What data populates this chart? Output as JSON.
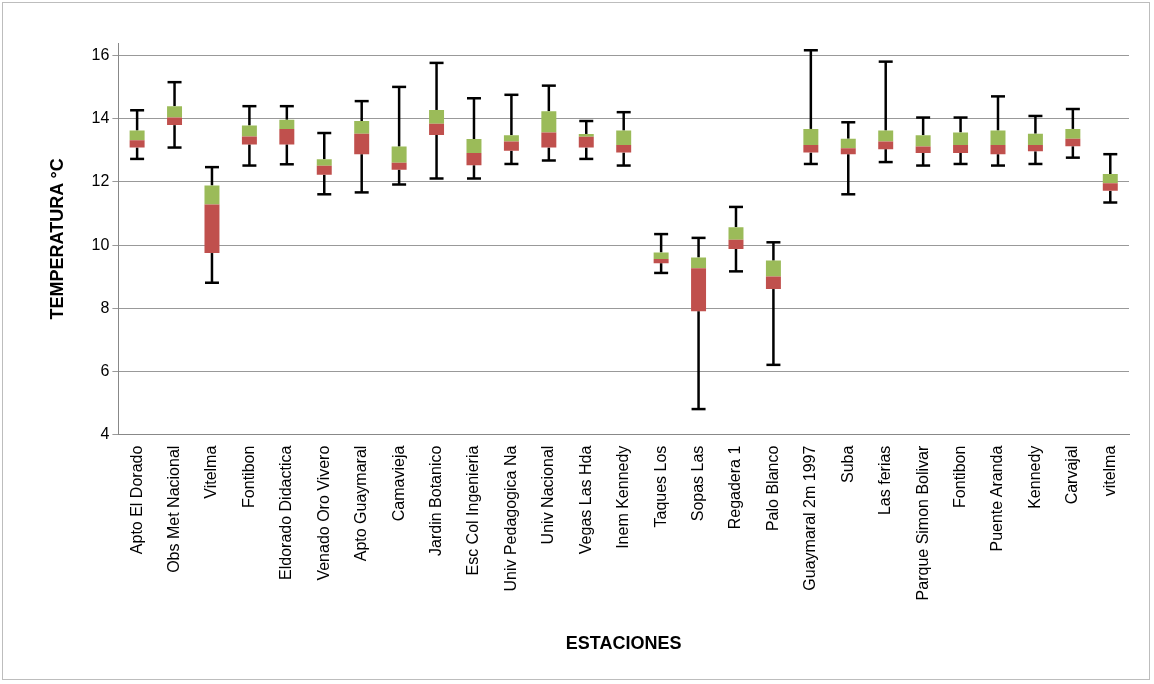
{
  "chart_data": {
    "type": "box",
    "xlabel": "ESTACIONES",
    "ylabel": "TEMPERATURA °C",
    "categories": [
      "Apto El Dorado",
      "Obs Met Nacional",
      "Vitelma",
      "Fontibon",
      "Eldorado Didactica",
      "Venado Oro Vivero",
      "Apto Guaymaral",
      "Camavieja",
      "Jardin Botanico",
      "Esc Col Ingenieria",
      "Univ Pedagogica Na",
      "Univ Nacional",
      "Vegas Las Hda",
      "Inem Kennedy",
      "Taques Los",
      "Sopas Las",
      "Regadera 1",
      "Palo Blanco",
      "Guaymaral 2m 1997",
      "Suba",
      "Las ferias",
      "Parque Simon Bolivar",
      "Fontibon",
      "Puente Aranda",
      "Kennedy",
      "Carvajal",
      "vitelma"
    ],
    "boxes": [
      {
        "low": 12.73,
        "q1": 13.09,
        "median": 13.32,
        "q3": 13.63,
        "high": 14.27
      },
      {
        "low": 13.09,
        "q1": 13.8,
        "median": 14.04,
        "q3": 14.4,
        "high": 15.16
      },
      {
        "low": 8.81,
        "q1": 9.75,
        "median": 11.29,
        "q3": 11.89,
        "high": 12.47
      },
      {
        "low": 12.52,
        "q1": 13.19,
        "median": 13.44,
        "q3": 13.79,
        "high": 14.4
      },
      {
        "low": 12.56,
        "q1": 13.19,
        "median": 13.68,
        "q3": 13.97,
        "high": 14.4
      },
      {
        "low": 11.61,
        "q1": 12.23,
        "median": 12.51,
        "q3": 12.72,
        "high": 13.55
      },
      {
        "low": 11.67,
        "q1": 12.88,
        "median": 13.53,
        "q3": 13.93,
        "high": 14.56
      },
      {
        "low": 11.92,
        "q1": 12.39,
        "median": 12.61,
        "q3": 13.12,
        "high": 15.01
      },
      {
        "low": 12.11,
        "q1": 13.49,
        "median": 13.84,
        "q3": 14.28,
        "high": 15.77
      },
      {
        "low": 12.11,
        "q1": 12.53,
        "median": 12.92,
        "q3": 13.36,
        "high": 14.65
      },
      {
        "low": 12.57,
        "q1": 12.99,
        "median": 13.28,
        "q3": 13.48,
        "high": 14.76
      },
      {
        "low": 12.68,
        "q1": 13.09,
        "median": 13.57,
        "q3": 14.24,
        "high": 15.05
      },
      {
        "low": 12.73,
        "q1": 13.09,
        "median": 13.43,
        "q3": 13.52,
        "high": 13.93
      },
      {
        "low": 12.52,
        "q1": 12.93,
        "median": 13.17,
        "q3": 13.63,
        "high": 14.21
      },
      {
        "low": 9.12,
        "q1": 9.43,
        "median": 9.56,
        "q3": 9.77,
        "high": 10.35
      },
      {
        "low": 4.81,
        "q1": 7.91,
        "median": 9.27,
        "q3": 9.61,
        "high": 10.23
      },
      {
        "low": 9.17,
        "q1": 9.88,
        "median": 10.17,
        "q3": 10.57,
        "high": 11.21
      },
      {
        "low": 6.21,
        "q1": 8.61,
        "median": 9.01,
        "q3": 9.51,
        "high": 10.09
      },
      {
        "low": 12.57,
        "q1": 12.93,
        "median": 13.17,
        "q3": 13.68,
        "high": 16.17
      },
      {
        "low": 11.61,
        "q1": 12.88,
        "median": 13.07,
        "q3": 13.37,
        "high": 13.89
      },
      {
        "low": 12.63,
        "q1": 13.04,
        "median": 13.28,
        "q3": 13.63,
        "high": 15.81
      },
      {
        "low": 12.52,
        "q1": 12.92,
        "median": 13.12,
        "q3": 13.48,
        "high": 14.04
      },
      {
        "low": 12.57,
        "q1": 12.92,
        "median": 13.17,
        "q3": 13.57,
        "high": 14.04
      },
      {
        "low": 12.52,
        "q1": 12.88,
        "median": 13.17,
        "q3": 13.63,
        "high": 14.71
      },
      {
        "low": 12.57,
        "q1": 12.97,
        "median": 13.17,
        "q3": 13.53,
        "high": 14.09
      },
      {
        "low": 12.77,
        "q1": 13.13,
        "median": 13.37,
        "q3": 13.68,
        "high": 14.31
      },
      {
        "low": 11.35,
        "q1": 11.72,
        "median": 11.96,
        "q3": 12.25,
        "high": 12.88
      }
    ],
    "colors": [
      [
        "#c0504d",
        "#9bbb59"
      ],
      [
        "#c0504d",
        "#9bbb59"
      ],
      [
        "#c0504d",
        "#9bbb59"
      ],
      [
        "#c0504d",
        "#9bbb59"
      ],
      [
        "#c0504d",
        "#9bbb59"
      ],
      [
        "#c0504d",
        "#9bbb59"
      ],
      [
        "#c0504d",
        "#9bbb59"
      ],
      [
        "#c0504d",
        "#9bbb59"
      ],
      [
        "#c0504d",
        "#9bbb59"
      ],
      [
        "#c0504d",
        "#9bbb59"
      ],
      [
        "#c0504d",
        "#9bbb59"
      ],
      [
        "#c0504d",
        "#9bbb59"
      ],
      [
        "#c0504d",
        "#9bbb59"
      ],
      [
        "#c0504d",
        "#9bbb59"
      ],
      [
        "#c0504d",
        "#9bbb59"
      ],
      [
        "#c0504d",
        "#9bbb59"
      ],
      [
        "#c0504d",
        "#9bbb59"
      ],
      [
        "#c0504d",
        "#9bbb59"
      ],
      [
        "#c0504d",
        "#9bbb59"
      ],
      [
        "#c0504d",
        "#9bbb59"
      ],
      [
        "#c0504d",
        "#9bbb59"
      ],
      [
        "#c0504d",
        "#9bbb59"
      ],
      [
        "#c0504d",
        "#9bbb59"
      ],
      [
        "#c0504d",
        "#9bbb59"
      ],
      [
        "#c0504d",
        "#9bbb59"
      ],
      [
        "#c0504d",
        "#9bbb59"
      ],
      [
        "#c0504d",
        "#9bbb59"
      ]
    ],
    "ylim": [
      4,
      16.4
    ],
    "yticks": [
      4,
      6,
      8,
      10,
      12,
      14,
      16
    ],
    "grid": "y",
    "legend": false
  }
}
